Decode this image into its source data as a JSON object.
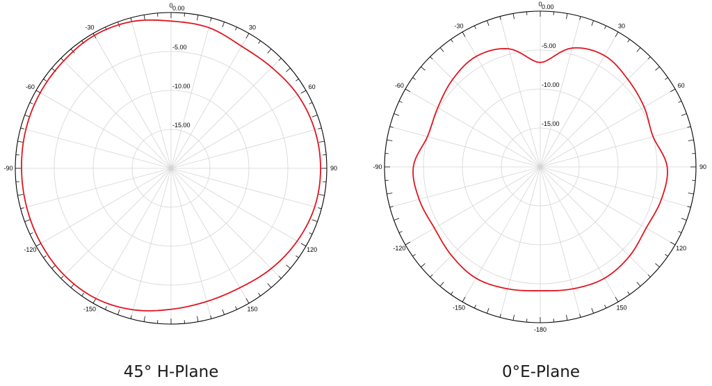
{
  "chart_data": [
    {
      "type": "polar-line",
      "title": "45° H-Plane",
      "series_color": "#e0141e",
      "radial_range": [
        -20,
        0
      ],
      "rings": [
        "0.00",
        "-5.00",
        "-10.00",
        "-15.00"
      ],
      "angle_labels": [
        "0",
        "30",
        "60",
        "90",
        "120",
        "150",
        "-150",
        "-120",
        "-90",
        "-60",
        "-30"
      ],
      "angles_deg": [
        0,
        15,
        30,
        45,
        60,
        75,
        90,
        105,
        120,
        135,
        150,
        165,
        180,
        195,
        210,
        225,
        240,
        255,
        270,
        285,
        300,
        315,
        330,
        345
      ],
      "gain_db": [
        -1.1,
        -1.3,
        -1.9,
        -1.7,
        -1.2,
        -0.9,
        -0.8,
        -0.9,
        -1.3,
        -1.8,
        -2.3,
        -2.3,
        -1.9,
        -1.2,
        -0.7,
        -0.6,
        -0.7,
        -0.8,
        -0.8,
        -0.7,
        -0.6,
        -0.5,
        -0.3,
        -0.5
      ]
    },
    {
      "type": "polar-line",
      "title": "0°E-Plane",
      "series_color": "#e0141e",
      "radial_range": [
        -20,
        0
      ],
      "rings": [
        "0.00",
        "-5.00",
        "-10.00",
        "-15.00"
      ],
      "angle_labels": [
        "0",
        "30",
        "60",
        "90",
        "120",
        "150",
        "-180",
        "-150",
        "-120",
        "-90",
        "-60",
        "-30"
      ],
      "angles_deg": [
        0,
        15,
        30,
        45,
        60,
        75,
        90,
        105,
        120,
        135,
        150,
        165,
        180,
        195,
        210,
        225,
        240,
        255,
        270,
        285,
        300,
        315,
        330,
        345
      ],
      "gain_db": [
        -6.6,
        -4.2,
        -3.5,
        -4.1,
        -4.6,
        -5.0,
        -3.7,
        -3.9,
        -4.3,
        -3.8,
        -3.5,
        -3.8,
        -4.1,
        -3.8,
        -3.5,
        -3.9,
        -4.3,
        -3.9,
        -3.7,
        -5.0,
        -4.8,
        -4.1,
        -3.6,
        -4.3
      ]
    }
  ]
}
